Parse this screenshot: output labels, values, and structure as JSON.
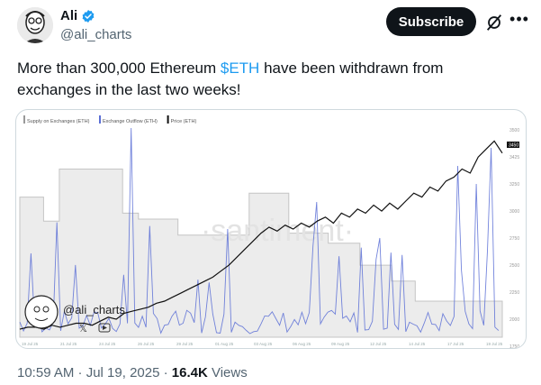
{
  "author": {
    "display_name": "Ali",
    "handle": "@ali_charts",
    "avatar_icon": "avatar-icon",
    "verified_icon": "verified-badge-icon",
    "verified_color": "#1d9bf0"
  },
  "header": {
    "subscribe_label": "Subscribe",
    "grok_icon": "grok-icon",
    "more_icon": "more-icon"
  },
  "tweet": {
    "text_before": "More than 300,000 Ethereum ",
    "cashtag": "$ETH",
    "text_after": " have been withdrawn from exchanges in the last two weeks!",
    "cashtag_color": "#1d9bf0"
  },
  "chart_data": {
    "type": "line",
    "legend": [
      "Supply on Exchanges (ETH)",
      "Exchange Outflow (ETH)",
      "Price (ETH)"
    ],
    "watermark": "·santiment·",
    "overlay_handle": "@ali_charts",
    "right_axis_labels": [
      "3500",
      "3425",
      "3250",
      "3000",
      "2750",
      "2500",
      "2250",
      "2000",
      "1750",
      "1500"
    ],
    "current_price_label": "3450",
    "x_labels": [
      "19 Jul 25",
      "21 Jul 25",
      "24 Jul 25",
      "26 Jul 25",
      "29 Jul 25",
      "01 Aug 25",
      "03 Aug 25",
      "06 Aug 25",
      "09 Aug 25",
      "12 Jul 25",
      "14 Jul 25",
      "17 Jul 25",
      "19 Jul 25"
    ],
    "colors": {
      "supply": "#d9d9d9",
      "outflow": "#5b6fd6",
      "price": "#111111"
    },
    "series": [
      {
        "name": "Supply on Exchanges (ETH)",
        "values": [
          0.7,
          0.7,
          0.7,
          0.58,
          0.58,
          0.84,
          0.84,
          0.84,
          0.84,
          0.84,
          0.84,
          0.84,
          0.84,
          0.62,
          0.62,
          0.59,
          0.59,
          0.59,
          0.59,
          0.59,
          0.51,
          0.51,
          0.51,
          0.51,
          0.51,
          0.51,
          0.51,
          0.51,
          0.51,
          0.72,
          0.72,
          0.72,
          0.72,
          0.72,
          0.52,
          0.52,
          0.52,
          0.52,
          0.52,
          0.47,
          0.47,
          0.47,
          0.47,
          0.36,
          0.36,
          0.36,
          0.36,
          0.28,
          0.28,
          0.28,
          0.18,
          0.18,
          0.18,
          0.18,
          0.18,
          0.18,
          0.18,
          0.18,
          0.18,
          0.18,
          0.18
        ]
      },
      {
        "name": "Price (ETH)",
        "values": [
          0.04,
          0.05,
          0.05,
          0.04,
          0.06,
          0.05,
          0.06,
          0.07,
          0.07,
          0.06,
          0.08,
          0.1,
          0.09,
          0.12,
          0.13,
          0.14,
          0.15,
          0.17,
          0.18,
          0.2,
          0.22,
          0.24,
          0.26,
          0.28,
          0.3,
          0.33,
          0.36,
          0.4,
          0.44,
          0.48,
          0.52,
          0.55,
          0.53,
          0.56,
          0.54,
          0.57,
          0.55,
          0.58,
          0.6,
          0.57,
          0.62,
          0.6,
          0.64,
          0.62,
          0.66,
          0.63,
          0.67,
          0.64,
          0.68,
          0.72,
          0.7,
          0.75,
          0.73,
          0.78,
          0.8,
          0.84,
          0.82,
          0.9,
          0.94,
          0.98,
          0.92
        ]
      }
    ]
  },
  "footer": {
    "timestamp": "10:59 AM · Jul 19, 2025 · ",
    "views_count": "16.4K",
    "views_label": " Views"
  }
}
